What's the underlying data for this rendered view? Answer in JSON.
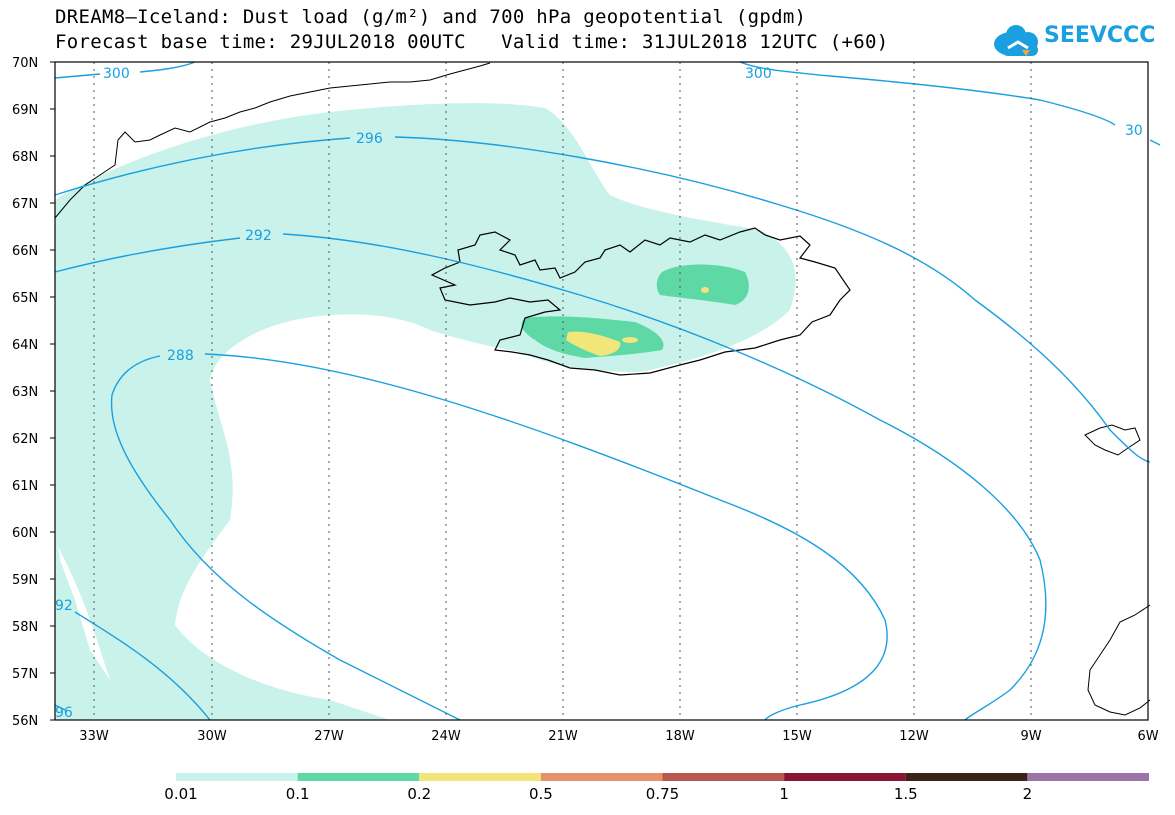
{
  "title_line1": "DREAM8–Iceland: Dust load (g/m²) and 700 hPa geopotential (gpdm)",
  "title_line2": "Forecast base time: 29JUL2018 00UTC   Valid time: 31JUL2018 12UTC (+60)",
  "logo_text": "SEEVCCC",
  "latitudes": [
    "70N",
    "69N",
    "68N",
    "67N",
    "66N",
    "65N",
    "64N",
    "63N",
    "62N",
    "61N",
    "60N",
    "59N",
    "58N",
    "57N",
    "56N"
  ],
  "longitudes": [
    "33W",
    "30W",
    "27W",
    "24W",
    "21W",
    "18W",
    "15W",
    "12W",
    "9W",
    "6W"
  ],
  "contour_labels": [
    "300",
    "300",
    "30",
    "296",
    "292",
    "288",
    "92",
    "96"
  ],
  "colorbar": {
    "labels": [
      "0.01",
      "0.1",
      "0.2",
      "0.5",
      "0.75",
      "1",
      "1.5",
      "2"
    ],
    "colors": [
      "#c8f2ea",
      "#5ed9a6",
      "#f2e57a",
      "#e8906a",
      "#b8584e",
      "#8a1532",
      "#3a2418",
      "#9a74a6"
    ]
  },
  "colors": {
    "dust_light": "#c8f2ea",
    "dust_mid": "#5ed9a6",
    "dust_high": "#f2e57a",
    "contour": "#1a9fe0",
    "coast": "#000000"
  }
}
